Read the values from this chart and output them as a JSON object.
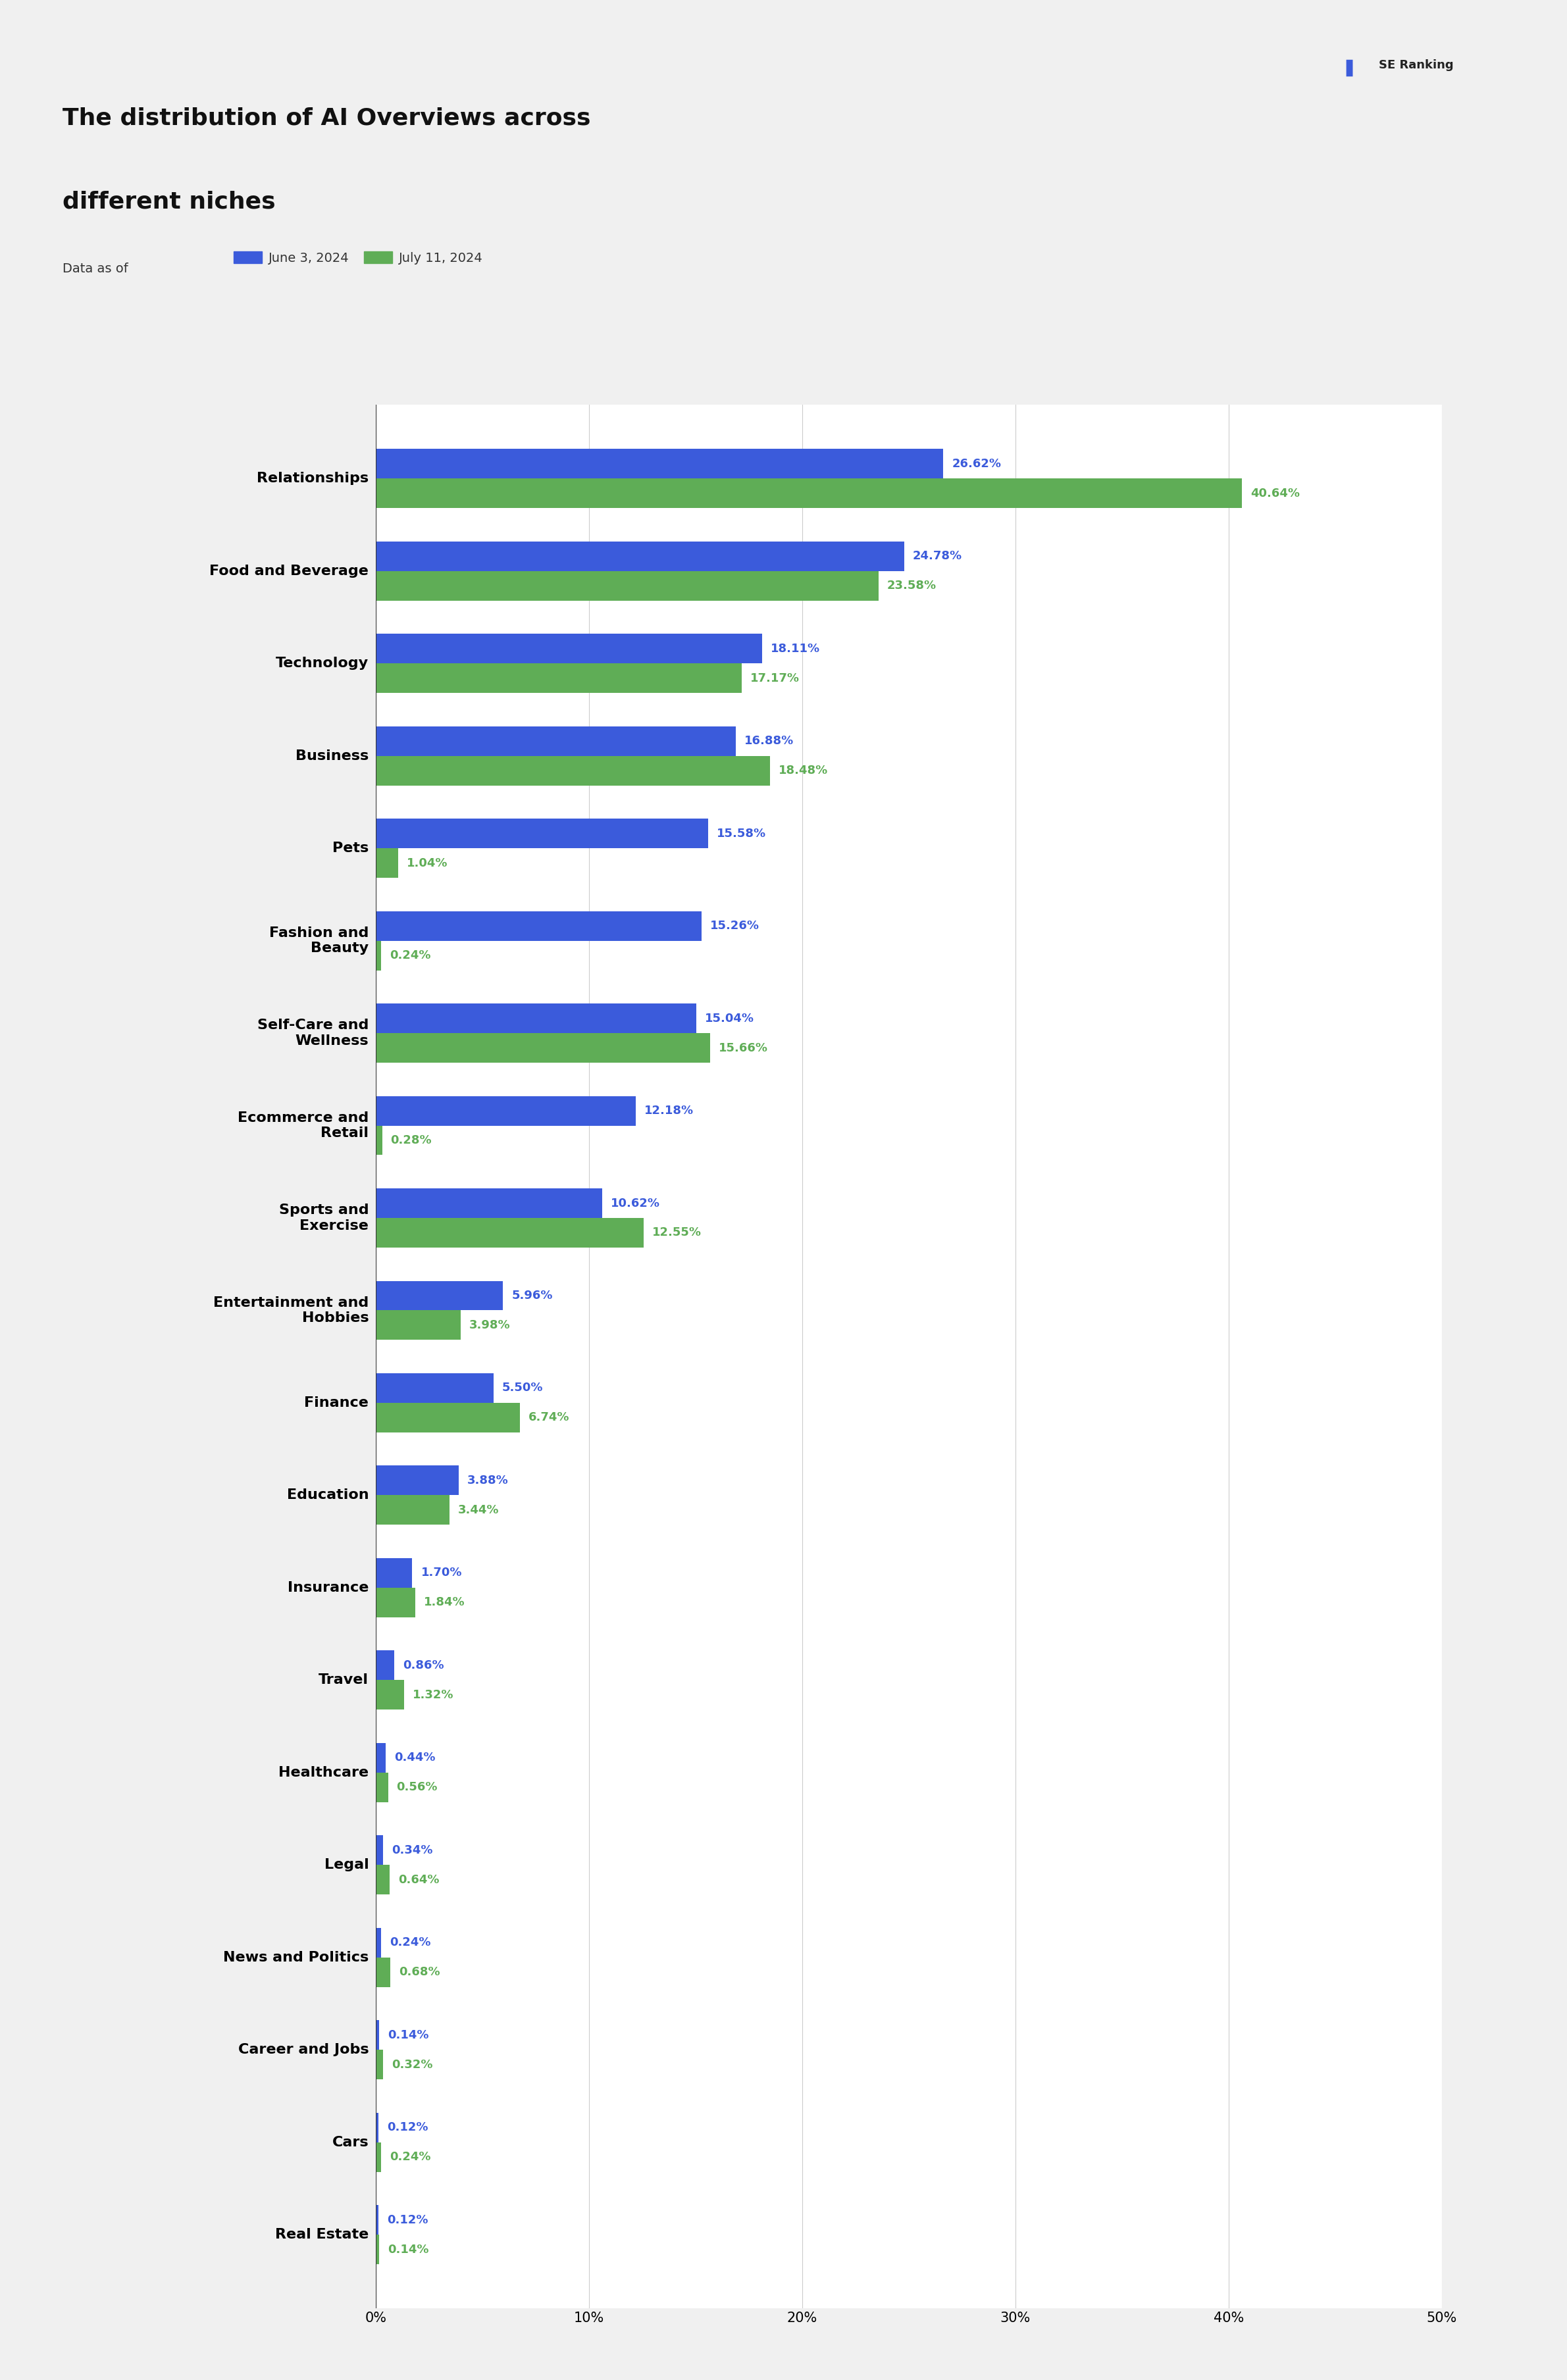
{
  "title_line1": "The distribution of AI Overviews across",
  "title_line2": "different niches",
  "legend_label_blue": "June 3, 2024",
  "legend_label_green": "July 11, 2024",
  "legend_prefix": "Data as of",
  "categories": [
    "Relationships",
    "Food and Beverage",
    "Technology",
    "Business",
    "Pets",
    "Fashion and\nBeauty",
    "Self-Care and\nWellness",
    "Ecommerce and\nRetail",
    "Sports and\nExercise",
    "Entertainment and\nHobbies",
    "Finance",
    "Education",
    "Insurance",
    "Travel",
    "Healthcare",
    "Legal",
    "News and Politics",
    "Career and Jobs",
    "Cars",
    "Real Estate"
  ],
  "values_blue": [
    26.62,
    24.78,
    18.11,
    16.88,
    15.58,
    15.26,
    15.04,
    12.18,
    10.62,
    5.96,
    5.5,
    3.88,
    1.7,
    0.86,
    0.44,
    0.34,
    0.24,
    0.14,
    0.12,
    0.12
  ],
  "values_green": [
    40.64,
    23.58,
    17.17,
    18.48,
    1.04,
    0.24,
    15.66,
    0.28,
    12.55,
    3.98,
    6.74,
    3.44,
    1.84,
    1.32,
    0.56,
    0.64,
    0.68,
    0.32,
    0.24,
    0.14
  ],
  "color_blue": "#3B5BDB",
  "color_green": "#5FAD56",
  "background_color": "#FFFFFF",
  "outer_background": "#F0F0F0",
  "title_fontsize": 26,
  "label_fontsize": 16,
  "tick_fontsize": 15,
  "value_fontsize": 13,
  "legend_fontsize": 14,
  "xlim": [
    0,
    50
  ],
  "xticks": [
    0,
    10,
    20,
    30,
    40,
    50
  ],
  "xtick_labels": [
    "0%",
    "10%",
    "20%",
    "30%",
    "40%",
    "50%"
  ]
}
